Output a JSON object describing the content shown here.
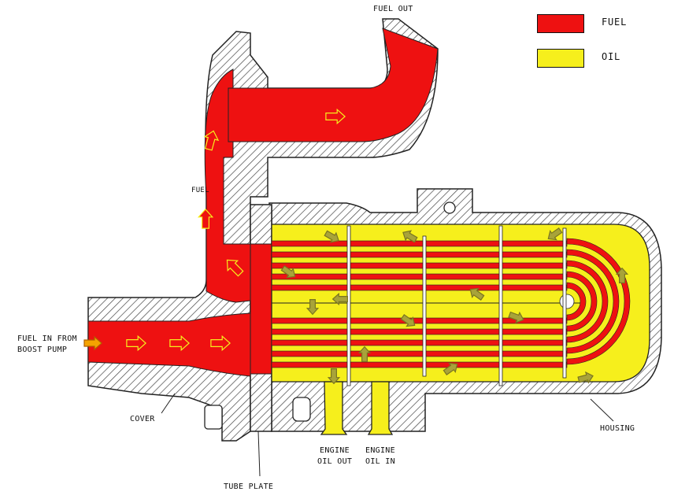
{
  "legend": {
    "fuel": {
      "label": "FUEL",
      "color": "#ee1111"
    },
    "oil": {
      "label": "OIL",
      "color": "#f6ef1c"
    }
  },
  "labels": {
    "fuel_out": "FUEL OUT",
    "fuel_in_line1": "FUEL IN FROM",
    "fuel_in_line2": "BOOST PUMP",
    "fuel_passage": "FUEL",
    "cover": "COVER",
    "tube_plate": "TUBE PLATE",
    "engine_oil_out_line1": "ENGINE",
    "engine_oil_out_line2": "OIL OUT",
    "engine_oil_in_line1": "ENGINE",
    "engine_oil_in_line2": "OIL IN",
    "housing": "HOUSING"
  },
  "colors": {
    "metal_hatch": "#444444",
    "arrow_oil": "#a8a33a"
  }
}
